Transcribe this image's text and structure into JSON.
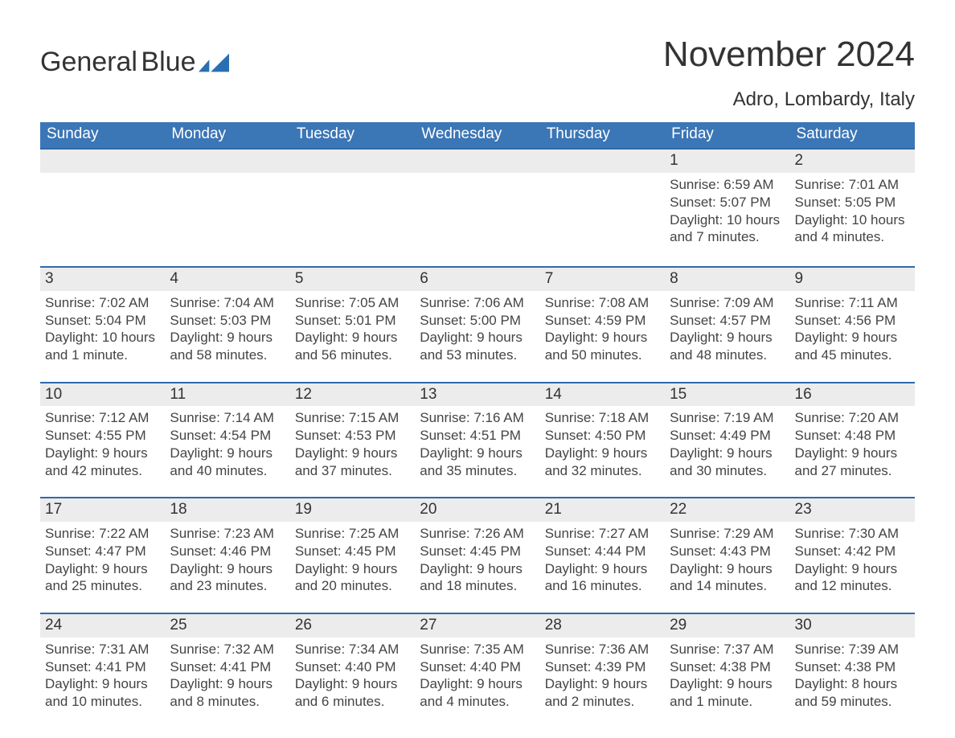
{
  "brand": {
    "name_part1": "General",
    "name_part2": "Blue"
  },
  "title": "November 2024",
  "location": "Adro, Lombardy, Italy",
  "colors": {
    "header_blue": "#3b76b6",
    "accent_blue": "#2f6aab",
    "row_head_bg": "#ececec",
    "logo_blue": "#2b6fb3",
    "background": "#ffffff",
    "text": "#222222"
  },
  "labels": {
    "sunrise": "Sunrise",
    "sunset": "Sunset",
    "daylight": "Daylight"
  },
  "weekdays": [
    "Sunday",
    "Monday",
    "Tuesday",
    "Wednesday",
    "Thursday",
    "Friday",
    "Saturday"
  ],
  "weeks": [
    [
      null,
      null,
      null,
      null,
      null,
      {
        "day": 1,
        "sunrise": "6:59 AM",
        "sunset": "5:07 PM",
        "daylight": "10 hours and 7 minutes."
      },
      {
        "day": 2,
        "sunrise": "7:01 AM",
        "sunset": "5:05 PM",
        "daylight": "10 hours and 4 minutes."
      }
    ],
    [
      {
        "day": 3,
        "sunrise": "7:02 AM",
        "sunset": "5:04 PM",
        "daylight": "10 hours and 1 minute."
      },
      {
        "day": 4,
        "sunrise": "7:04 AM",
        "sunset": "5:03 PM",
        "daylight": "9 hours and 58 minutes."
      },
      {
        "day": 5,
        "sunrise": "7:05 AM",
        "sunset": "5:01 PM",
        "daylight": "9 hours and 56 minutes."
      },
      {
        "day": 6,
        "sunrise": "7:06 AM",
        "sunset": "5:00 PM",
        "daylight": "9 hours and 53 minutes."
      },
      {
        "day": 7,
        "sunrise": "7:08 AM",
        "sunset": "4:59 PM",
        "daylight": "9 hours and 50 minutes."
      },
      {
        "day": 8,
        "sunrise": "7:09 AM",
        "sunset": "4:57 PM",
        "daylight": "9 hours and 48 minutes."
      },
      {
        "day": 9,
        "sunrise": "7:11 AM",
        "sunset": "4:56 PM",
        "daylight": "9 hours and 45 minutes."
      }
    ],
    [
      {
        "day": 10,
        "sunrise": "7:12 AM",
        "sunset": "4:55 PM",
        "daylight": "9 hours and 42 minutes."
      },
      {
        "day": 11,
        "sunrise": "7:14 AM",
        "sunset": "4:54 PM",
        "daylight": "9 hours and 40 minutes."
      },
      {
        "day": 12,
        "sunrise": "7:15 AM",
        "sunset": "4:53 PM",
        "daylight": "9 hours and 37 minutes."
      },
      {
        "day": 13,
        "sunrise": "7:16 AM",
        "sunset": "4:51 PM",
        "daylight": "9 hours and 35 minutes."
      },
      {
        "day": 14,
        "sunrise": "7:18 AM",
        "sunset": "4:50 PM",
        "daylight": "9 hours and 32 minutes."
      },
      {
        "day": 15,
        "sunrise": "7:19 AM",
        "sunset": "4:49 PM",
        "daylight": "9 hours and 30 minutes."
      },
      {
        "day": 16,
        "sunrise": "7:20 AM",
        "sunset": "4:48 PM",
        "daylight": "9 hours and 27 minutes."
      }
    ],
    [
      {
        "day": 17,
        "sunrise": "7:22 AM",
        "sunset": "4:47 PM",
        "daylight": "9 hours and 25 minutes."
      },
      {
        "day": 18,
        "sunrise": "7:23 AM",
        "sunset": "4:46 PM",
        "daylight": "9 hours and 23 minutes."
      },
      {
        "day": 19,
        "sunrise": "7:25 AM",
        "sunset": "4:45 PM",
        "daylight": "9 hours and 20 minutes."
      },
      {
        "day": 20,
        "sunrise": "7:26 AM",
        "sunset": "4:45 PM",
        "daylight": "9 hours and 18 minutes."
      },
      {
        "day": 21,
        "sunrise": "7:27 AM",
        "sunset": "4:44 PM",
        "daylight": "9 hours and 16 minutes."
      },
      {
        "day": 22,
        "sunrise": "7:29 AM",
        "sunset": "4:43 PM",
        "daylight": "9 hours and 14 minutes."
      },
      {
        "day": 23,
        "sunrise": "7:30 AM",
        "sunset": "4:42 PM",
        "daylight": "9 hours and 12 minutes."
      }
    ],
    [
      {
        "day": 24,
        "sunrise": "7:31 AM",
        "sunset": "4:41 PM",
        "daylight": "9 hours and 10 minutes."
      },
      {
        "day": 25,
        "sunrise": "7:32 AM",
        "sunset": "4:41 PM",
        "daylight": "9 hours and 8 minutes."
      },
      {
        "day": 26,
        "sunrise": "7:34 AM",
        "sunset": "4:40 PM",
        "daylight": "9 hours and 6 minutes."
      },
      {
        "day": 27,
        "sunrise": "7:35 AM",
        "sunset": "4:40 PM",
        "daylight": "9 hours and 4 minutes."
      },
      {
        "day": 28,
        "sunrise": "7:36 AM",
        "sunset": "4:39 PM",
        "daylight": "9 hours and 2 minutes."
      },
      {
        "day": 29,
        "sunrise": "7:37 AM",
        "sunset": "4:38 PM",
        "daylight": "9 hours and 1 minute."
      },
      {
        "day": 30,
        "sunrise": "7:39 AM",
        "sunset": "4:38 PM",
        "daylight": "8 hours and 59 minutes."
      }
    ]
  ]
}
